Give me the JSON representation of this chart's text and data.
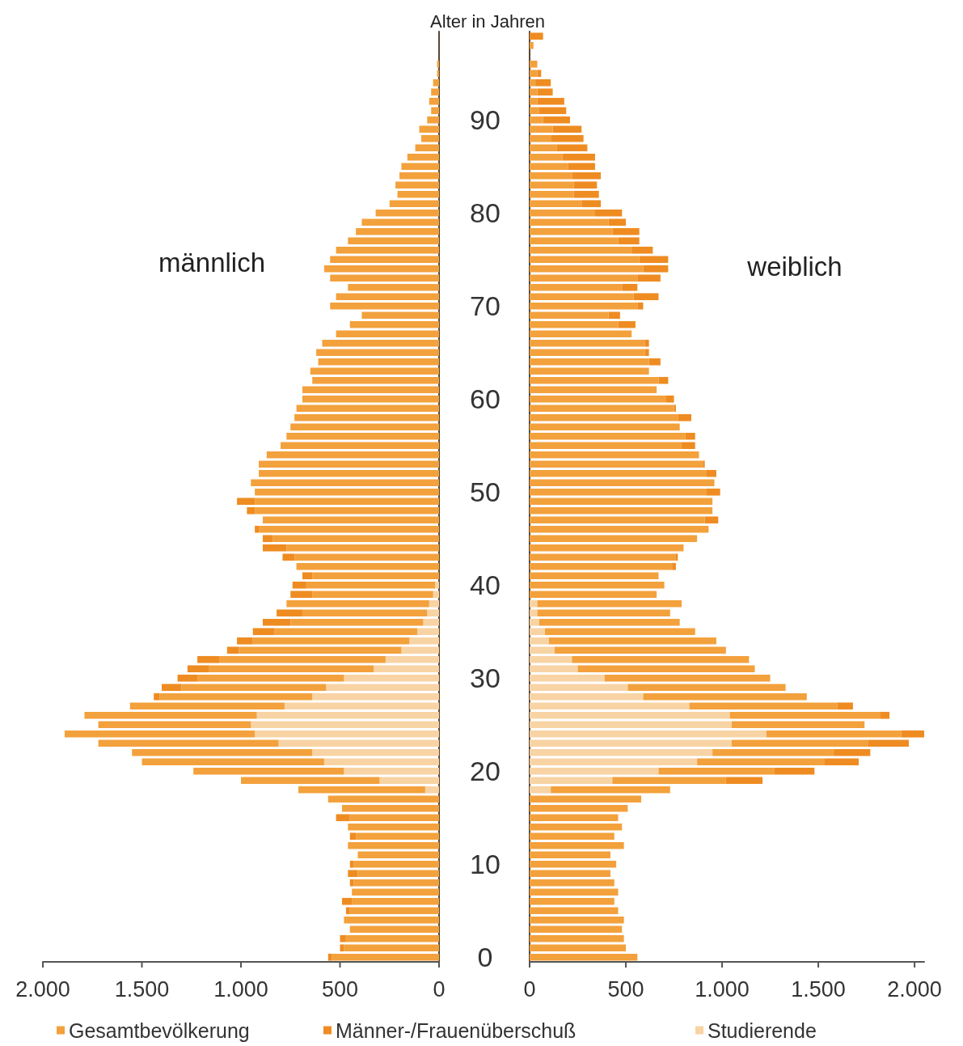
{
  "chart_data": [
    {
      "type": "bar",
      "orientation": "horizontal",
      "stacked": true,
      "title": "männlich",
      "ylabel": "Alter in Jahren",
      "legend": "bottom",
      "grid": false,
      "categories": [
        null,
        null,
        null,
        null,
        null,
        null,
        null,
        null,
        null,
        "90",
        null,
        null,
        null,
        null,
        null,
        null,
        null,
        null,
        null,
        "80",
        null,
        null,
        null,
        null,
        null,
        null,
        null,
        null,
        null,
        "70",
        null,
        null,
        null,
        null,
        null,
        null,
        null,
        null,
        null,
        "60",
        null,
        null,
        null,
        null,
        null,
        null,
        null,
        null,
        null,
        "50",
        null,
        null,
        null,
        null,
        null,
        null,
        null,
        null,
        null,
        "40",
        null,
        null,
        null,
        null,
        null,
        null,
        null,
        null,
        null,
        "30",
        null,
        null,
        null,
        null,
        null,
        null,
        null,
        null,
        null,
        "20",
        null,
        null,
        null,
        null,
        null,
        null,
        null,
        null,
        null,
        "10",
        null,
        null,
        null,
        null,
        null,
        null,
        null,
        null,
        null,
        "0"
      ],
      "xlim": [
        2000,
        0
      ],
      "xticks": [
        {
          "value": 2000,
          "label": "2.000"
        },
        {
          "value": 1500,
          "label": "1.500"
        },
        {
          "value": 1000,
          "label": "1.000"
        },
        {
          "value": 500,
          "label": "500"
        },
        {
          "value": 0,
          "label": "0"
        }
      ],
      "series": [
        {
          "name": "Studierende",
          "color": "#f8d3a4",
          "values": [
            null,
            null,
            null,
            null,
            null,
            null,
            null,
            null,
            null,
            null,
            null,
            null,
            null,
            null,
            null,
            null,
            null,
            null,
            null,
            null,
            null,
            null,
            null,
            null,
            null,
            null,
            null,
            null,
            null,
            null,
            null,
            null,
            null,
            null,
            null,
            null,
            null,
            null,
            null,
            null,
            null,
            null,
            null,
            null,
            null,
            null,
            null,
            null,
            null,
            null,
            null,
            null,
            null,
            null,
            null,
            null,
            null,
            null,
            null,
            20,
            30,
            50,
            60,
            80,
            110,
            150,
            190,
            270,
            330,
            480,
            570,
            640,
            780,
            920,
            950,
            930,
            810,
            640,
            580,
            480,
            300,
            70,
            null,
            null,
            null,
            null,
            null,
            null,
            null,
            null,
            null,
            null,
            null,
            null,
            null,
            null,
            null,
            null,
            null,
            null
          ]
        },
        {
          "name": "Gesamtbevölkerung",
          "color": "#f3a13c",
          "values": [
            null,
            null,
            null,
            10,
            10,
            30,
            40,
            50,
            40,
            60,
            100,
            90,
            120,
            160,
            190,
            200,
            220,
            210,
            250,
            320,
            390,
            420,
            460,
            520,
            550,
            580,
            550,
            460,
            520,
            550,
            390,
            450,
            520,
            590,
            620,
            610,
            650,
            640,
            690,
            690,
            720,
            730,
            750,
            770,
            800,
            870,
            910,
            910,
            950,
            930,
            930,
            930,
            890,
            910,
            840,
            770,
            730,
            720,
            640,
            650,
            610,
            720,
            630,
            670,
            720,
            790,
            820,
            840,
            830,
            740,
            730,
            770,
            780,
            870,
            770,
            960,
            910,
            910,
            920,
            760,
            700,
            640,
            560,
            490,
            450,
            460,
            420,
            460,
            410,
            430,
            410,
            430,
            440,
            440,
            450,
            480,
            450,
            470,
            480,
            540
          ]
        },
        {
          "name": "Männer-/Frauenüberschuß",
          "color": "#ee8c22",
          "values": [
            null,
            null,
            null,
            null,
            null,
            null,
            null,
            null,
            null,
            null,
            null,
            null,
            null,
            null,
            null,
            null,
            null,
            null,
            null,
            null,
            null,
            null,
            null,
            null,
            null,
            null,
            null,
            null,
            null,
            null,
            null,
            null,
            null,
            null,
            null,
            null,
            null,
            null,
            null,
            null,
            null,
            null,
            null,
            null,
            null,
            null,
            null,
            null,
            null,
            null,
            90,
            40,
            null,
            20,
            50,
            120,
            60,
            null,
            50,
            70,
            110,
            null,
            130,
            140,
            110,
            80,
            60,
            110,
            110,
            100,
            100,
            30,
            null,
            null,
            null,
            null,
            null,
            null,
            null,
            null,
            null,
            null,
            null,
            null,
            70,
            null,
            30,
            null,
            null,
            20,
            50,
            20,
            null,
            50,
            20,
            null,
            null,
            30,
            20,
            20
          ]
        }
      ]
    },
    {
      "type": "bar",
      "orientation": "horizontal",
      "stacked": true,
      "title": "weiblich",
      "tick_labels": "x",
      "grid": false,
      "categories": [
        null,
        null,
        null,
        null,
        null,
        null,
        null,
        null,
        null,
        "90",
        null,
        null,
        null,
        null,
        null,
        null,
        null,
        null,
        null,
        "80",
        null,
        null,
        null,
        null,
        null,
        null,
        null,
        null,
        null,
        "70",
        null,
        null,
        null,
        null,
        null,
        null,
        null,
        null,
        null,
        "60",
        null,
        null,
        null,
        null,
        null,
        null,
        null,
        null,
        null,
        "50",
        null,
        null,
        null,
        null,
        null,
        null,
        null,
        null,
        null,
        "40",
        null,
        null,
        null,
        null,
        null,
        null,
        null,
        null,
        null,
        "30",
        null,
        null,
        null,
        null,
        null,
        null,
        null,
        null,
        null,
        "20",
        null,
        null,
        null,
        null,
        null,
        null,
        null,
        null,
        null,
        "10",
        null,
        null,
        null,
        null,
        null,
        null,
        null,
        null,
        null,
        "0"
      ],
      "xlim": [
        0,
        2050
      ],
      "xticks": [
        {
          "value": 0,
          "label": "0"
        },
        {
          "value": 500,
          "label": "500"
        },
        {
          "value": 1000,
          "label": "1.000"
        },
        {
          "value": 1500,
          "label": "1.500"
        },
        {
          "value": 2000,
          "label": "2.000"
        }
      ],
      "series": [
        {
          "color": "#f8d3a4",
          "values": [
            null,
            null,
            null,
            null,
            null,
            null,
            null,
            null,
            null,
            null,
            null,
            null,
            null,
            null,
            null,
            null,
            null,
            null,
            null,
            null,
            null,
            null,
            null,
            null,
            null,
            null,
            null,
            null,
            null,
            null,
            null,
            null,
            null,
            null,
            null,
            null,
            null,
            null,
            null,
            null,
            null,
            null,
            null,
            null,
            null,
            null,
            null,
            null,
            null,
            null,
            null,
            null,
            null,
            null,
            null,
            null,
            null,
            null,
            null,
            null,
            null,
            40,
            40,
            50,
            80,
            100,
            130,
            220,
            250,
            390,
            510,
            590,
            830,
            1040,
            1050,
            1230,
            1050,
            950,
            870,
            670,
            430,
            110,
            null,
            null,
            null,
            null,
            null,
            null,
            null,
            null,
            null,
            null,
            null,
            null,
            null,
            null,
            null,
            null,
            null,
            null
          ]
        },
        {
          "color": "#f3a13c",
          "values": [
            null,
            20,
            null,
            40,
            40,
            30,
            40,
            40,
            50,
            70,
            120,
            110,
            140,
            170,
            200,
            220,
            230,
            230,
            270,
            340,
            410,
            430,
            460,
            530,
            570,
            590,
            560,
            480,
            540,
            560,
            410,
            460,
            530,
            600,
            600,
            620,
            620,
            670,
            660,
            710,
            750,
            770,
            780,
            810,
            790,
            880,
            900,
            920,
            960,
            920,
            950,
            950,
            910,
            930,
            870,
            800,
            760,
            740,
            670,
            700,
            660,
            750,
            690,
            730,
            780,
            870,
            890,
            920,
            920,
            860,
            820,
            850,
            770,
            780,
            690,
            700,
            710,
            630,
            660,
            600,
            590,
            620,
            580,
            510,
            460,
            480,
            440,
            490,
            420,
            450,
            420,
            440,
            460,
            440,
            460,
            490,
            480,
            490,
            500,
            560
          ]
        },
        {
          "color": "#ee8c22",
          "values": [
            70,
            null,
            null,
            null,
            20,
            80,
            80,
            140,
            140,
            140,
            150,
            170,
            160,
            170,
            140,
            150,
            120,
            130,
            100,
            140,
            90,
            140,
            110,
            110,
            150,
            130,
            120,
            80,
            130,
            30,
            60,
            90,
            null,
            20,
            20,
            60,
            null,
            50,
            null,
            40,
            10,
            70,
            null,
            50,
            70,
            null,
            10,
            50,
            null,
            70,
            null,
            null,
            70,
            null,
            null,
            null,
            10,
            20,
            null,
            null,
            null,
            null,
            null,
            null,
            null,
            null,
            null,
            null,
            null,
            null,
            null,
            null,
            80,
            50,
            null,
            120,
            210,
            190,
            180,
            210,
            190,
            null,
            null,
            null,
            null,
            null,
            null,
            null,
            null,
            null,
            null,
            null,
            null,
            null,
            null,
            null,
            null,
            null,
            null,
            null
          ]
        }
      ]
    }
  ]
}
